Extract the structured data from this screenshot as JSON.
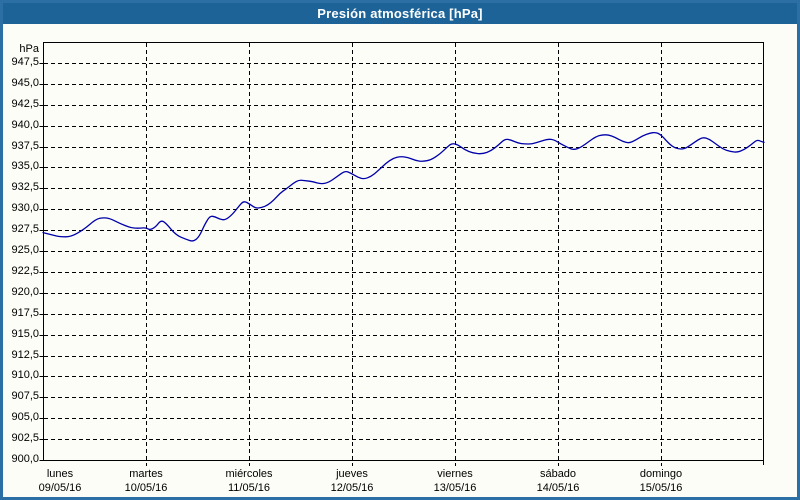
{
  "window": {
    "title": "Presión atmosférica [hPa]"
  },
  "colors": {
    "titlebar": "#1d6398",
    "frame_border": "#2b6fa5",
    "background": "#fcfdf6",
    "grid": "#000000",
    "plot_border": "#000000",
    "series_line": "#0000aa",
    "title_text": "#ffffff",
    "axis_text": "#000000"
  },
  "chart_data": {
    "type": "line",
    "title": "Presión atmosférica [hPa]",
    "unit_label": "hPa",
    "ylim": [
      900,
      950
    ],
    "ytick_step": 2.5,
    "grid": "dashed",
    "legend": "none",
    "ytick_labels": [
      "947,5",
      "945,0",
      "942,5",
      "940,0",
      "937,5",
      "935,0",
      "932,5",
      "930,0",
      "927,5",
      "925,0",
      "922,5",
      "920,0",
      "917,5",
      "915,0",
      "912,5",
      "910,0",
      "907,5",
      "905,0",
      "902,5",
      "900,0"
    ],
    "x_days": [
      {
        "name": "lunes",
        "date": "09/05/16"
      },
      {
        "name": "martes",
        "date": "10/05/16"
      },
      {
        "name": "miércoles",
        "date": "11/05/16"
      },
      {
        "name": "jueves",
        "date": "12/05/16"
      },
      {
        "name": "viernes",
        "date": "13/05/16"
      },
      {
        "name": "sábado",
        "date": "14/05/16"
      },
      {
        "name": "domingo",
        "date": "15/05/16"
      }
    ],
    "x_hours_total": 168,
    "series": [
      {
        "name": "Presión atmosférica",
        "unit": "hPa",
        "points": [
          [
            0,
            927.2
          ],
          [
            2.3,
            926.9
          ],
          [
            4,
            926.7
          ],
          [
            6.5,
            926.7
          ],
          [
            9.3,
            927.5
          ],
          [
            12.3,
            928.8
          ],
          [
            14,
            929.0
          ],
          [
            15.6,
            928.9
          ],
          [
            17.9,
            928.3
          ],
          [
            20.3,
            927.8
          ],
          [
            22.1,
            927.7
          ],
          [
            24,
            927.8
          ],
          [
            24.9,
            927.5
          ],
          [
            26.3,
            927.9
          ],
          [
            27.5,
            928.7
          ],
          [
            28.7,
            928.3
          ],
          [
            31,
            926.9
          ],
          [
            33.3,
            926.4
          ],
          [
            35,
            926.1
          ],
          [
            36.4,
            926.7
          ],
          [
            37.7,
            928.2
          ],
          [
            38.9,
            929.2
          ],
          [
            40.1,
            929.1
          ],
          [
            41.2,
            928.8
          ],
          [
            42.4,
            928.7
          ],
          [
            44,
            929.3
          ],
          [
            45.7,
            930.4
          ],
          [
            46.8,
            931.0
          ],
          [
            48.2,
            930.6
          ],
          [
            49.6,
            930.1
          ],
          [
            51,
            930.2
          ],
          [
            52.4,
            930.5
          ],
          [
            53.8,
            931.1
          ],
          [
            55.2,
            931.9
          ],
          [
            56.6,
            932.4
          ],
          [
            58.3,
            933.1
          ],
          [
            59.7,
            933.5
          ],
          [
            61.3,
            933.4
          ],
          [
            62.9,
            933.3
          ],
          [
            64.8,
            933.0
          ],
          [
            66.6,
            933.2
          ],
          [
            68.5,
            933.9
          ],
          [
            70.4,
            934.6
          ],
          [
            71.8,
            934.3
          ],
          [
            73.4,
            933.8
          ],
          [
            74.8,
            933.6
          ],
          [
            76.4,
            933.9
          ],
          [
            78.1,
            934.6
          ],
          [
            79.9,
            935.5
          ],
          [
            81.6,
            936.1
          ],
          [
            83.2,
            936.3
          ],
          [
            85,
            936.2
          ],
          [
            86.9,
            935.8
          ],
          [
            88.5,
            935.7
          ],
          [
            90.4,
            935.9
          ],
          [
            92.5,
            936.6
          ],
          [
            94.1,
            937.4
          ],
          [
            95.3,
            937.9
          ],
          [
            96.7,
            937.7
          ],
          [
            98.3,
            937.1
          ],
          [
            100.2,
            936.7
          ],
          [
            102.5,
            936.6
          ],
          [
            104.4,
            937.0
          ],
          [
            106.2,
            937.7
          ],
          [
            107.6,
            938.4
          ],
          [
            109,
            938.3
          ],
          [
            110.7,
            937.9
          ],
          [
            112.3,
            937.8
          ],
          [
            113.9,
            937.8
          ],
          [
            115.8,
            938.1
          ],
          [
            117.7,
            938.4
          ],
          [
            119.1,
            938.3
          ],
          [
            120.7,
            937.8
          ],
          [
            122.6,
            937.3
          ],
          [
            123.7,
            937.1
          ],
          [
            125.4,
            937.4
          ],
          [
            127.2,
            938.1
          ],
          [
            128.9,
            938.7
          ],
          [
            130.3,
            938.9
          ],
          [
            131.7,
            938.9
          ],
          [
            133.3,
            938.6
          ],
          [
            135.1,
            938.1
          ],
          [
            136.5,
            937.9
          ],
          [
            137.9,
            938.2
          ],
          [
            139.8,
            938.8
          ],
          [
            141.4,
            939.1
          ],
          [
            142.8,
            939.2
          ],
          [
            144,
            938.9
          ],
          [
            145.2,
            938.2
          ],
          [
            146.6,
            937.5
          ],
          [
            148,
            937.2
          ],
          [
            149.4,
            937.2
          ],
          [
            151,
            937.7
          ],
          [
            152.6,
            938.3
          ],
          [
            153.8,
            938.6
          ],
          [
            155.2,
            938.4
          ],
          [
            156.8,
            937.8
          ],
          [
            158.4,
            937.2
          ],
          [
            160.1,
            936.9
          ],
          [
            161.7,
            936.8
          ],
          [
            163.3,
            937.1
          ],
          [
            165,
            937.7
          ],
          [
            166.4,
            938.3
          ],
          [
            167.3,
            938.1
          ],
          [
            168,
            938.0
          ]
        ]
      }
    ]
  }
}
